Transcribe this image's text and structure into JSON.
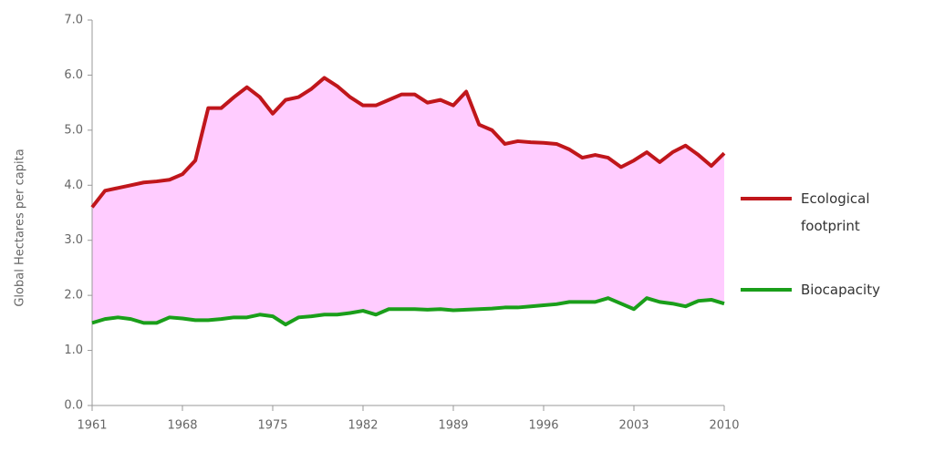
{
  "chart_data": {
    "type": "line",
    "y_label": "Global Hectares per capita",
    "x": [
      1961,
      1962,
      1963,
      1964,
      1965,
      1966,
      1967,
      1968,
      1969,
      1970,
      1971,
      1972,
      1973,
      1974,
      1975,
      1976,
      1977,
      1978,
      1979,
      1980,
      1981,
      1982,
      1983,
      1984,
      1985,
      1986,
      1987,
      1988,
      1989,
      1990,
      1991,
      1992,
      1993,
      1994,
      1995,
      1996,
      1997,
      1998,
      1999,
      2000,
      2001,
      2002,
      2003,
      2004,
      2005,
      2006,
      2007,
      2008,
      2009,
      2010
    ],
    "series": [
      {
        "name": "Ecological footprint",
        "color": "#c0161b",
        "values": [
          3.6,
          3.9,
          3.95,
          4.0,
          4.05,
          4.07,
          4.1,
          4.2,
          4.45,
          5.4,
          5.4,
          5.6,
          5.78,
          5.6,
          5.3,
          5.55,
          5.6,
          5.75,
          5.95,
          5.8,
          5.6,
          5.45,
          5.45,
          5.55,
          5.65,
          5.65,
          5.5,
          5.55,
          5.45,
          5.7,
          5.1,
          5.0,
          4.75,
          4.8,
          4.78,
          4.77,
          4.75,
          4.65,
          4.5,
          4.55,
          4.5,
          4.33,
          4.45,
          4.6,
          4.42,
          4.6,
          4.72,
          4.55,
          4.35,
          4.58
        ]
      },
      {
        "name": "Biocapacity",
        "color": "#1a9e1a",
        "values": [
          1.5,
          1.57,
          1.6,
          1.57,
          1.5,
          1.5,
          1.6,
          1.58,
          1.55,
          1.55,
          1.57,
          1.6,
          1.6,
          1.65,
          1.62,
          1.47,
          1.6,
          1.62,
          1.65,
          1.65,
          1.68,
          1.72,
          1.65,
          1.75,
          1.75,
          1.75,
          1.74,
          1.75,
          1.73,
          1.74,
          1.75,
          1.76,
          1.78,
          1.78,
          1.8,
          1.82,
          1.84,
          1.88,
          1.88,
          1.88,
          1.95,
          1.85,
          1.75,
          1.95,
          1.88,
          1.85,
          1.8,
          1.9,
          1.92,
          1.85
        ]
      }
    ],
    "fill_between_color": "#ffccff",
    "xlim": [
      1961,
      2010
    ],
    "xticks": [
      1961,
      1968,
      1975,
      1982,
      1989,
      1996,
      2003,
      2010
    ],
    "ylim": [
      0,
      7
    ],
    "yticks": [
      {
        "value": 0,
        "label": "0.0"
      },
      {
        "value": 1,
        "label": "1.0"
      },
      {
        "value": 2,
        "label": "2.0"
      },
      {
        "value": 3,
        "label": "3.0"
      },
      {
        "value": 4,
        "label": "4.0"
      },
      {
        "value": 5,
        "label": "5.0"
      },
      {
        "value": 6,
        "label": "6.0"
      },
      {
        "value": 7,
        "label": "7.0"
      }
    ],
    "legend": "right"
  }
}
